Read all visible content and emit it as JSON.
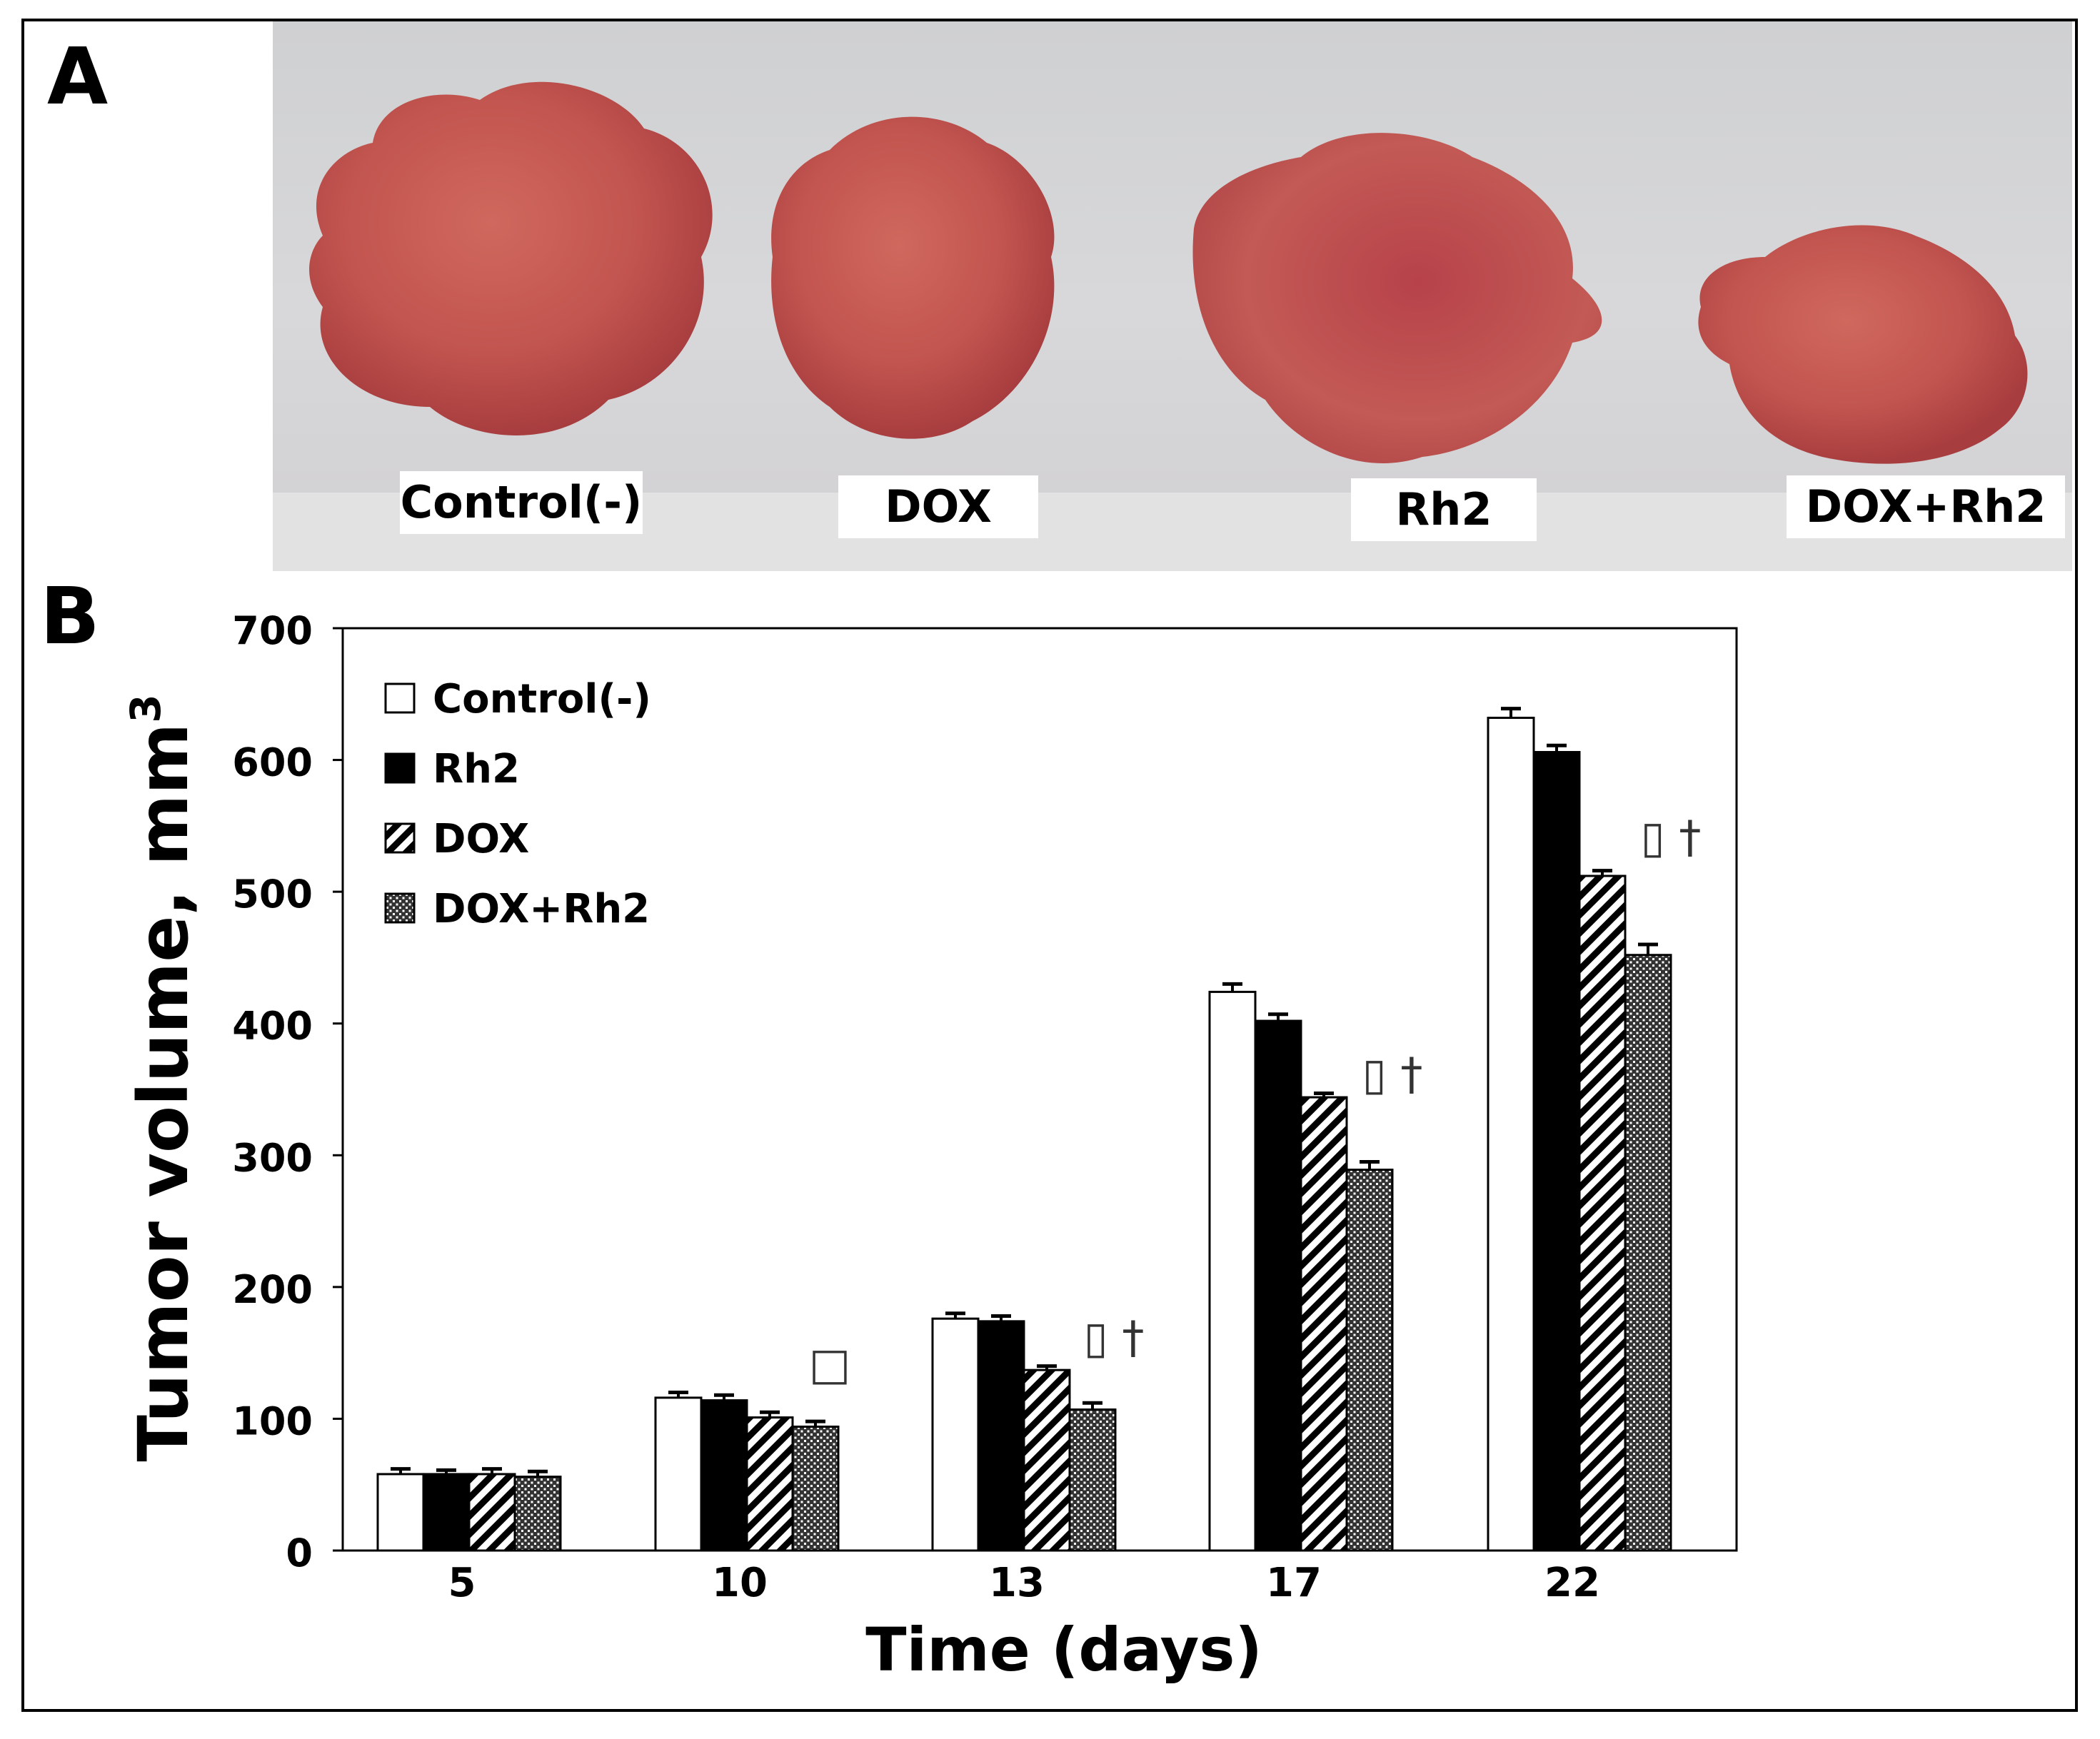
{
  "panels": {
    "a_label": "A",
    "b_label": "B"
  },
  "photo": {
    "labels": [
      "Control(-)",
      "DOX",
      "Rh2",
      "DOX+Rh2"
    ]
  },
  "colors": {
    "tumor_fill": "#c2554f",
    "tumor_dark": "#a8343a",
    "tumor_light": "#d97a6e",
    "background_gray": "#d6d6d8",
    "bar_stroke": "#000000"
  },
  "chart_data": {
    "type": "bar",
    "title": "",
    "xlabel": "Time (days)",
    "ylabel": "Tumor volume, mm",
    "ylabel_superscript": "3",
    "ylim": [
      0,
      700
    ],
    "yticks": [
      "0",
      "100",
      "200",
      "300",
      "400",
      "500",
      "600",
      "700"
    ],
    "categories": [
      "5",
      "10",
      "13",
      "17",
      "22"
    ],
    "series": [
      {
        "name": "Control(-)",
        "pattern": "white",
        "values": [
          58,
          116,
          176,
          424,
          632
        ],
        "errors": [
          4,
          4,
          4,
          6,
          7
        ]
      },
      {
        "name": "Rh2",
        "pattern": "black",
        "values": [
          58,
          114,
          174,
          402,
          606
        ],
        "errors": [
          3,
          4,
          4,
          5,
          5
        ]
      },
      {
        "name": "DOX",
        "pattern": "diagonal",
        "values": [
          58,
          101,
          137,
          344,
          512
        ],
        "errors": [
          4,
          4,
          3,
          3,
          4
        ]
      },
      {
        "name": "DOX+Rh2",
        "pattern": "crosshatch",
        "values": [
          56,
          94,
          107,
          289,
          452
        ],
        "errors": [
          4,
          4,
          5,
          6,
          8
        ]
      }
    ],
    "legend_position": "top-left",
    "annotations": [
      {
        "category": "10",
        "text": "□"
      },
      {
        "category": "13",
        "text": "▯ †"
      },
      {
        "category": "17",
        "text": "▯ †"
      },
      {
        "category": "22",
        "text": "▯ †"
      }
    ]
  }
}
